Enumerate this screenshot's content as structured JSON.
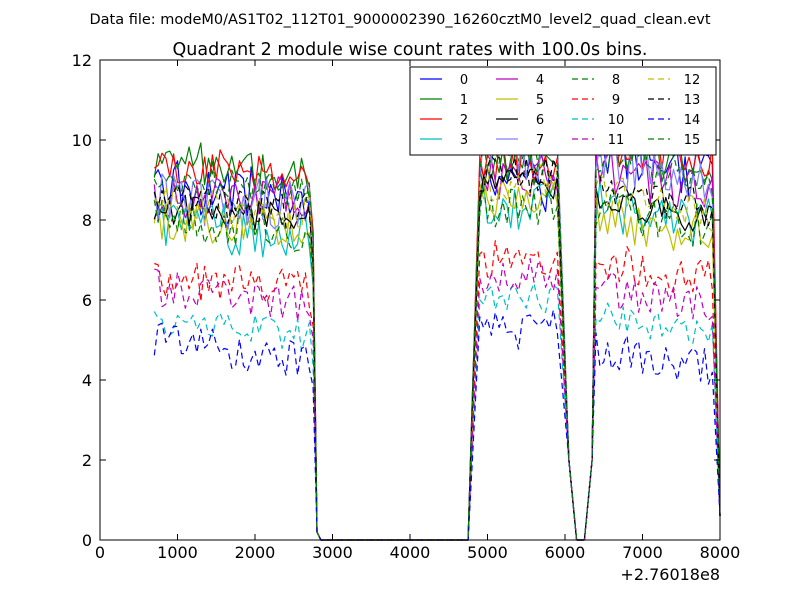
{
  "figure": {
    "suptitle": "Data file: modeM0/AS1T02_112T01_9000002390_16260cztM0_level2_quad_clean.evt"
  },
  "chart_data": {
    "type": "line",
    "title": "Quadrant 2 module wise count rates with 100.0s bins.",
    "xlabel": "",
    "ylabel": "",
    "x_offset_label": "+2.76018e8",
    "xlim": [
      0,
      8000
    ],
    "ylim": [
      0,
      12
    ],
    "x_ticks": [
      0,
      1000,
      2000,
      3000,
      4000,
      5000,
      6000,
      7000,
      8000
    ],
    "y_ticks": [
      0,
      2,
      4,
      6,
      8,
      10,
      12
    ],
    "grid": false,
    "legend_position": "top-right",
    "legend_columns": 4,
    "segments": [
      {
        "start": 700,
        "end": 2700
      },
      {
        "start": 4900,
        "end": 5900
      },
      {
        "start": 6400,
        "end": 7900
      }
    ],
    "drop_points": [
      {
        "x": 2750,
        "y": 7.0
      },
      {
        "x": 2800,
        "y": 0.2
      },
      {
        "x": 2850,
        "y": 0.0
      },
      {
        "x": 4750,
        "y": 0.0
      },
      {
        "x": 4800,
        "y": 3.0
      },
      {
        "x": 6050,
        "y": 2.0
      },
      {
        "x": 6150,
        "y": 0.0
      },
      {
        "x": 6250,
        "y": 0.0
      },
      {
        "x": 6350,
        "y": 2.0
      },
      {
        "x": 8000,
        "y": 0.6
      }
    ],
    "series": [
      {
        "name": "0",
        "color": "#0000ff",
        "style": "solid",
        "base": [
          9.0,
          8.4,
          8.8,
          9.6
        ],
        "spread": 0.45
      },
      {
        "name": "1",
        "color": "#008000",
        "style": "solid",
        "base": [
          9.6,
          9.0,
          9.3,
          9.8
        ],
        "spread": 0.35
      },
      {
        "name": "2",
        "color": "#ff0000",
        "style": "solid",
        "base": [
          9.4,
          9.1,
          9.4,
          9.9
        ],
        "spread": 0.3
      },
      {
        "name": "3",
        "color": "#00bfbf",
        "style": "solid",
        "base": [
          8.0,
          7.5,
          8.3,
          8.4
        ],
        "spread": 0.4
      },
      {
        "name": "4",
        "color": "#bf00bf",
        "style": "solid",
        "base": [
          8.5,
          8.6,
          9.0,
          9.2
        ],
        "spread": 0.35
      },
      {
        "name": "5",
        "color": "#bfbf00",
        "style": "solid",
        "base": [
          8.0,
          7.8,
          8.6,
          8.1
        ],
        "spread": 0.35
      },
      {
        "name": "6",
        "color": "#000000",
        "style": "solid",
        "base": [
          8.3,
          8.0,
          8.8,
          8.5
        ],
        "spread": 0.25
      },
      {
        "name": "7",
        "color": "#8080ff",
        "style": "solid",
        "base": [
          8.6,
          8.3,
          9.6,
          9.6
        ],
        "spread": 0.45
      },
      {
        "name": "8",
        "color": "#008000",
        "style": "dashed",
        "base": [
          8.1,
          7.7,
          8.3,
          8.3
        ],
        "spread": 0.35
      },
      {
        "name": "9",
        "color": "#ff0000",
        "style": "dashed",
        "base": [
          6.5,
          6.3,
          7.0,
          7.0
        ],
        "spread": 0.3
      },
      {
        "name": "10",
        "color": "#00bfbf",
        "style": "dashed",
        "base": [
          5.5,
          5.1,
          6.0,
          5.6
        ],
        "spread": 0.25
      },
      {
        "name": "11",
        "color": "#bf00bf",
        "style": "dashed",
        "base": [
          6.3,
          5.9,
          6.6,
          6.3
        ],
        "spread": 0.3
      },
      {
        "name": "12",
        "color": "#bfbf00",
        "style": "dashed",
        "base": [
          8.4,
          8.1,
          8.9,
          8.7
        ],
        "spread": 0.3
      },
      {
        "name": "13",
        "color": "#000000",
        "style": "dashed",
        "base": [
          8.5,
          8.2,
          9.1,
          8.8
        ],
        "spread": 0.3
      },
      {
        "name": "14",
        "color": "#0000ff",
        "style": "dashed",
        "base": [
          5.0,
          4.5,
          5.2,
          4.8
        ],
        "spread": 0.3
      },
      {
        "name": "15",
        "color": "#008000",
        "style": "dashed",
        "base": [
          9.2,
          8.8,
          9.5,
          9.6
        ],
        "spread": 0.3
      }
    ]
  }
}
